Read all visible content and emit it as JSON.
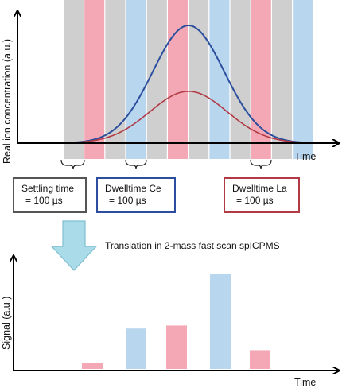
{
  "top_plot": {
    "y_axis_label": "Real ion concentration (a.u.)",
    "x_axis_label": "Time",
    "strip_sequence": [
      "settling",
      "La",
      "settling",
      "Ce",
      "settling",
      "La",
      "settling",
      "Ce",
      "settling",
      "La",
      "settling",
      "Ce"
    ],
    "curves": [
      {
        "element": "Ce",
        "peak_relative": 1.0,
        "color": "#2b4f9e"
      },
      {
        "element": "La",
        "peak_relative": 0.44,
        "color": "#b23a45"
      }
    ]
  },
  "colors": {
    "settling_strip": "#cfcfcf",
    "ce_strip": "#b9d6ef",
    "la_strip": "#f4a8b5",
    "ce_accent": "#2b4f9e",
    "la_accent": "#b23a45",
    "settling_accent": "#555555",
    "arrow_fill": "#a9dbe8",
    "arrow_stroke": "#7fbfd1"
  },
  "boxes": {
    "settling": {
      "line1": "Settling time",
      "line2": "= 100 µs"
    },
    "ce": {
      "line1": "Dwelltime Ce",
      "line2": "= 100 µs"
    },
    "la": {
      "line1": "Dwelltime La",
      "line2": "= 100 µs"
    }
  },
  "translation_text": "Translation in 2-mass fast scan spICPMS",
  "chart_data": {
    "type": "bar",
    "ylabel": "Signal (a.u.)",
    "xlabel": "Time",
    "series": [
      {
        "element": "La",
        "values": [
          0.06,
          0.44,
          0.19
        ],
        "color": "#f4a8b5"
      },
      {
        "element": "Ce",
        "values": [
          0.41,
          0.96
        ],
        "color": "#b9d6ef"
      }
    ],
    "bars_in_time_order": [
      {
        "element": "La",
        "value": 0.06
      },
      {
        "element": "Ce",
        "value": 0.41
      },
      {
        "element": "La",
        "value": 0.44
      },
      {
        "element": "Ce",
        "value": 0.96
      },
      {
        "element": "La",
        "value": 0.19
      }
    ],
    "ylim": [
      0,
      1
    ]
  }
}
